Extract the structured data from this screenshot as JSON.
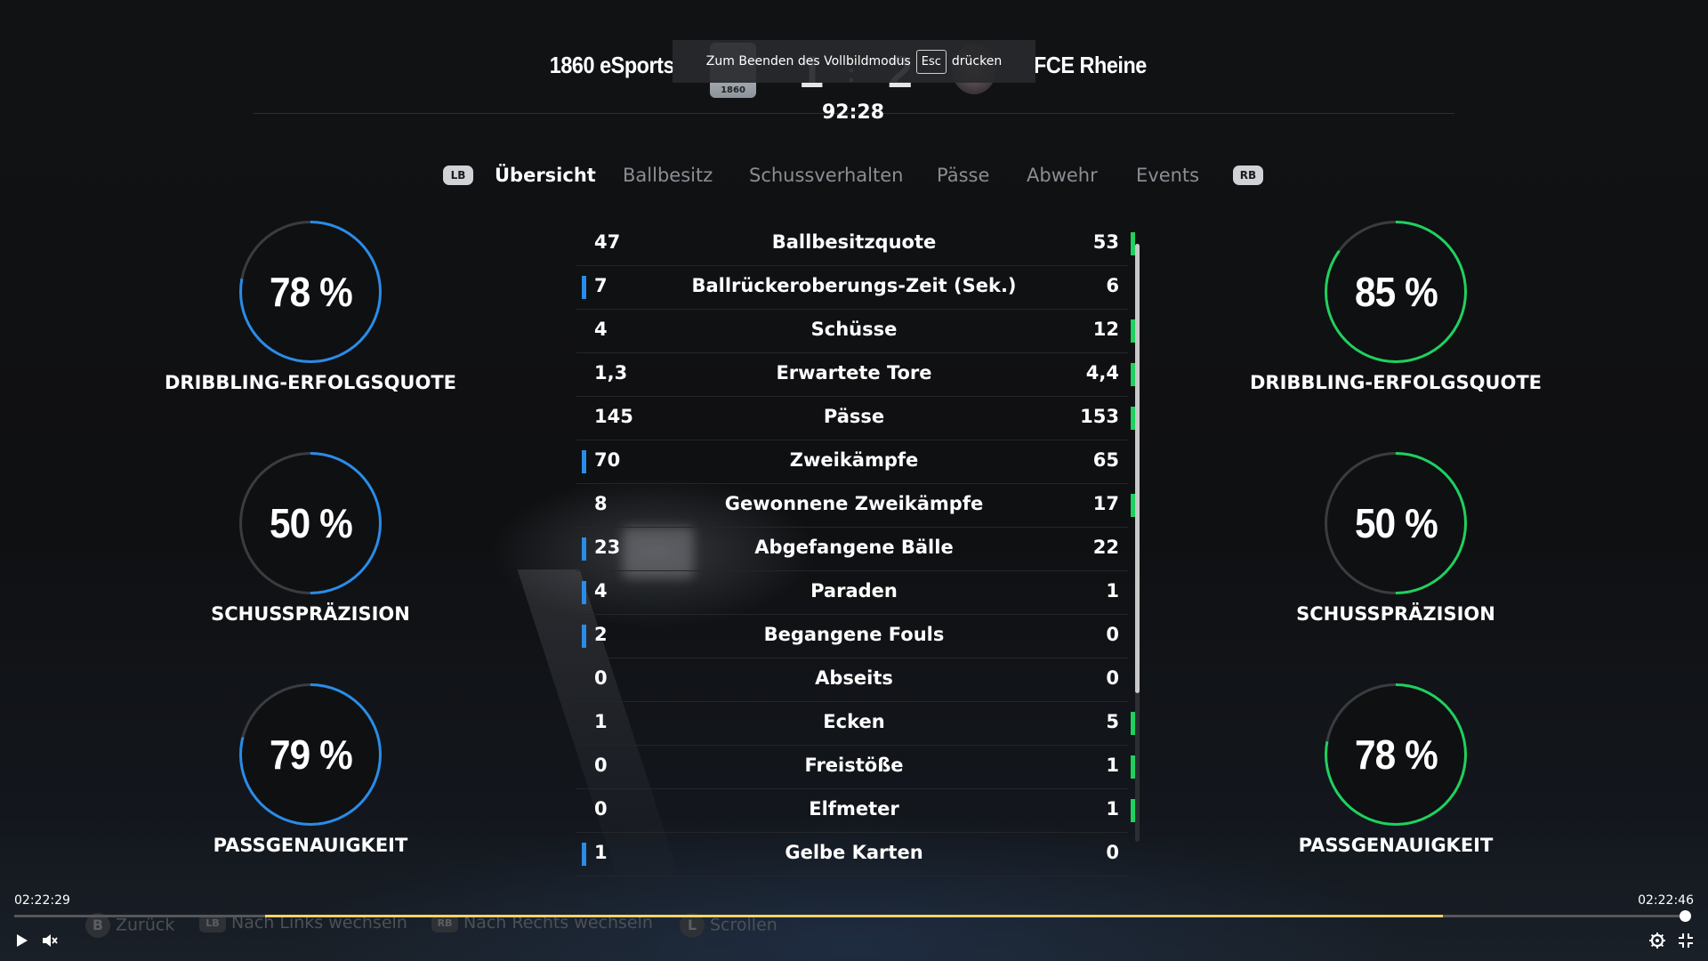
{
  "header": {
    "home_team": "1860 eSports",
    "away_team": "FCE Rheine",
    "home_crest_text": "1860",
    "home_score": "1",
    "score_separator": ":",
    "away_score": "2",
    "clock": "92:28"
  },
  "fullscreen_toast": {
    "before": "Zum Beenden des Vollbildmodus",
    "key": "Esc",
    "after": "drücken"
  },
  "tabs": {
    "left_bumper": "LB",
    "right_bumper": "RB",
    "items": [
      "Übersicht",
      "Ballbesitz",
      "Schussverhalten",
      "Pässe",
      "Abwehr",
      "Events"
    ],
    "active": "Übersicht"
  },
  "home_stats": [
    {
      "value": "78 %",
      "label": "DRIBBLING-ERFOLGSQUOTE",
      "fill": 0.78
    },
    {
      "value": "50 %",
      "label": "SCHUSSPRÄZISION",
      "fill": 0.5
    },
    {
      "value": "79 %",
      "label": "PASSGENAUIGKEIT",
      "fill": 0.79
    }
  ],
  "away_stats": [
    {
      "value": "85 %",
      "label": "DRIBBLING-ERFOLGSQUOTE",
      "fill": 0.85
    },
    {
      "value": "50 %",
      "label": "SCHUSSPRÄZISION",
      "fill": 0.5
    },
    {
      "value": "78 %",
      "label": "PASSGENAUIGKEIT",
      "fill": 0.78
    }
  ],
  "colors": {
    "home": "#2a8ce8",
    "away": "#1fd15e",
    "ring_track": "#3a3c40"
  },
  "table": [
    {
      "left": "47",
      "name": "Ballbesitzquote",
      "right": "53",
      "leader": "right"
    },
    {
      "left": "7",
      "name": "Ballrückeroberungs-Zeit (Sek.)",
      "right": "6",
      "leader": "left"
    },
    {
      "left": "4",
      "name": "Schüsse",
      "right": "12",
      "leader": "right"
    },
    {
      "left": "1,3",
      "name": "Erwartete Tore",
      "right": "4,4",
      "leader": "right"
    },
    {
      "left": "145",
      "name": "Pässe",
      "right": "153",
      "leader": "right"
    },
    {
      "left": "70",
      "name": "Zweikämpfe",
      "right": "65",
      "leader": "left"
    },
    {
      "left": "8",
      "name": "Gewonnene Zweikämpfe",
      "right": "17",
      "leader": "right"
    },
    {
      "left": "23",
      "name": "Abgefangene Bälle",
      "right": "22",
      "leader": "left"
    },
    {
      "left": "4",
      "name": "Paraden",
      "right": "1",
      "leader": "left"
    },
    {
      "left": "2",
      "name": "Begangene Fouls",
      "right": "0",
      "leader": "left"
    },
    {
      "left": "0",
      "name": "Abseits",
      "right": "0",
      "leader": "none"
    },
    {
      "left": "1",
      "name": "Ecken",
      "right": "5",
      "leader": "right"
    },
    {
      "left": "0",
      "name": "Freistöße",
      "right": "1",
      "leader": "right"
    },
    {
      "left": "0",
      "name": "Elfmeter",
      "right": "1",
      "leader": "right"
    },
    {
      "left": "1",
      "name": "Gelbe Karten",
      "right": "0",
      "leader": "left"
    }
  ],
  "player": {
    "time_current": "02:22:29",
    "time_end": "02:22:46",
    "progress": 0.997,
    "hints": [
      {
        "key": "B",
        "label": "Zurück"
      },
      {
        "key": "LB",
        "label": "Nach Links wechseln"
      },
      {
        "key": "RB",
        "label": "Nach Rechts wechseln"
      },
      {
        "key": "L",
        "label": "Scrollen"
      }
    ],
    "icons": [
      "play-icon",
      "mute-icon",
      "settings-icon",
      "exit-fullscreen-icon"
    ]
  }
}
